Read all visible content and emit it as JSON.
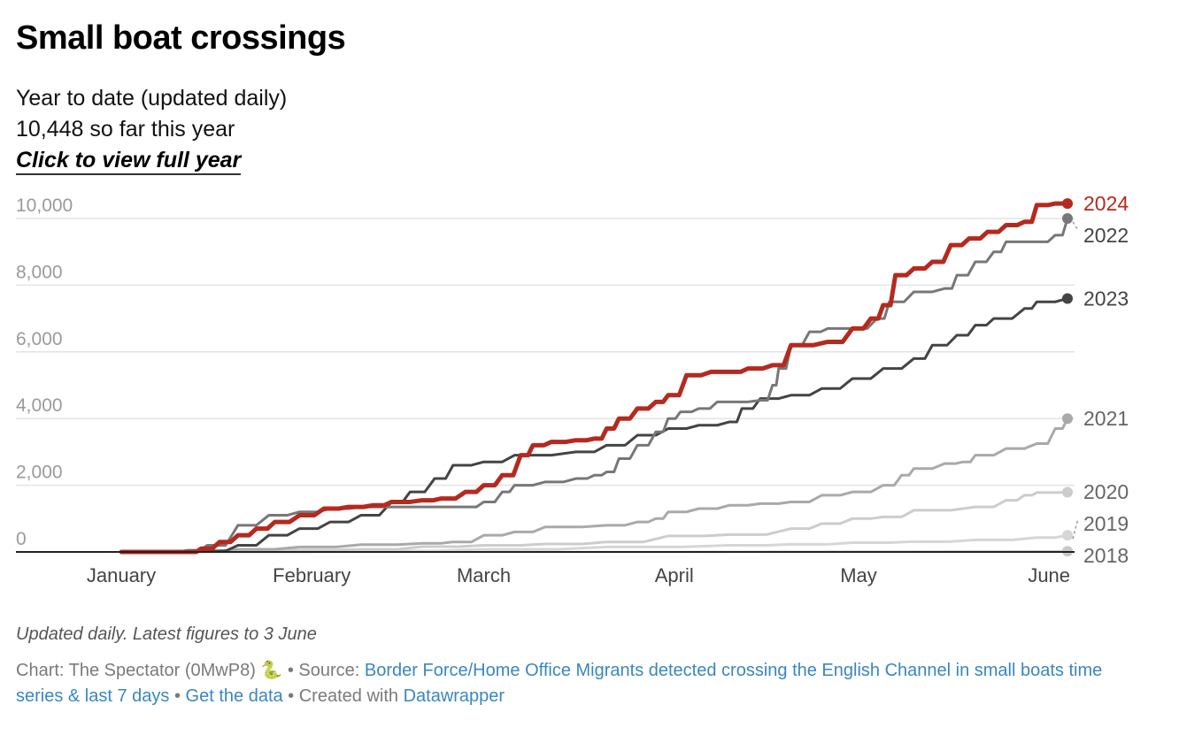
{
  "header": {
    "title": "Small boat crossings",
    "subtitle_line1": "Year to date (updated daily)",
    "subtitle_line2": "10,448 so far this year",
    "cta_label": "Click to view full year"
  },
  "notes": "Updated daily. Latest figures to 3 June",
  "footer": {
    "chart_prefix": "Chart: The Spectator (0MwP8) 🐍 • Source: ",
    "source_link": "Border Force/Home Office Migrants detected crossing the English Channel in small boats time series & last 7 days",
    "sep1": " • ",
    "data_link": "Get the data",
    "sep2": " • Created with ",
    "tool_link": "Datawrapper"
  },
  "colors": {
    "2024": "#b5291f",
    "2022": "#777777",
    "2023": "#444444",
    "2021": "#a9a9a9",
    "2020": "#cccccc",
    "2019": "#d6d6d6",
    "2018": "#c8c8c8",
    "grid": "#e4e4e4",
    "baseline": "#222222"
  },
  "chart_data": {
    "type": "line",
    "title": "Small boat crossings",
    "xlabel": "",
    "ylabel": "",
    "x_unit": "day of year",
    "xlim": [
      1,
      155
    ],
    "ylim": [
      0,
      10000
    ],
    "y_ticks": [
      0,
      2000,
      4000,
      6000,
      8000,
      10000
    ],
    "y_tick_labels": [
      "0",
      "2,000",
      "4,000",
      "6,000",
      "8,000",
      "10,000"
    ],
    "x_ticks": [
      1,
      32,
      60,
      91,
      121,
      152
    ],
    "x_tick_labels": [
      "January",
      "February",
      "March",
      "April",
      "May",
      "June"
    ],
    "grid": true,
    "series": [
      {
        "name": "2018",
        "color_key": "2018",
        "width": 2.5,
        "points": [
          [
            1,
            0
          ],
          [
            155,
            20
          ]
        ]
      },
      {
        "name": "2019",
        "color_key": "2019",
        "width": 3,
        "points": [
          [
            1,
            0
          ],
          [
            20,
            5
          ],
          [
            40,
            30
          ],
          [
            60,
            80
          ],
          [
            80,
            150
          ],
          [
            100,
            200
          ],
          [
            110,
            230
          ],
          [
            120,
            280
          ],
          [
            130,
            310
          ],
          [
            140,
            360
          ],
          [
            150,
            430
          ],
          [
            155,
            500
          ]
        ]
      },
      {
        "name": "2020",
        "color_key": "2020",
        "width": 3,
        "points": [
          [
            1,
            0
          ],
          [
            12,
            10
          ],
          [
            20,
            30
          ],
          [
            30,
            60
          ],
          [
            40,
            80
          ],
          [
            50,
            160
          ],
          [
            60,
            200
          ],
          [
            70,
            240
          ],
          [
            80,
            300
          ],
          [
            90,
            480
          ],
          [
            100,
            520
          ],
          [
            110,
            700
          ],
          [
            115,
            850
          ],
          [
            120,
            1000
          ],
          [
            125,
            1050
          ],
          [
            130,
            1250
          ],
          [
            140,
            1350
          ],
          [
            145,
            1550
          ],
          [
            148,
            1700
          ],
          [
            150,
            1780
          ],
          [
            155,
            1790
          ]
        ]
      },
      {
        "name": "2021",
        "color_key": "2021",
        "width": 3,
        "points": [
          [
            1,
            0
          ],
          [
            10,
            20
          ],
          [
            20,
            80
          ],
          [
            30,
            150
          ],
          [
            40,
            220
          ],
          [
            50,
            260
          ],
          [
            55,
            300
          ],
          [
            60,
            500
          ],
          [
            65,
            600
          ],
          [
            70,
            750
          ],
          [
            80,
            800
          ],
          [
            85,
            900
          ],
          [
            88,
            1000
          ],
          [
            90,
            1200
          ],
          [
            95,
            1300
          ],
          [
            100,
            1400
          ],
          [
            105,
            1450
          ],
          [
            110,
            1500
          ],
          [
            115,
            1700
          ],
          [
            120,
            1800
          ],
          [
            125,
            2000
          ],
          [
            128,
            2300
          ],
          [
            130,
            2500
          ],
          [
            135,
            2650
          ],
          [
            138,
            2700
          ],
          [
            140,
            2900
          ],
          [
            145,
            3100
          ],
          [
            150,
            3250
          ],
          [
            153,
            3700
          ],
          [
            155,
            4000
          ]
        ]
      },
      {
        "name": "2022",
        "color_key": "2022",
        "width": 3,
        "points": [
          [
            1,
            0
          ],
          [
            8,
            10
          ],
          [
            12,
            50
          ],
          [
            15,
            200
          ],
          [
            20,
            800
          ],
          [
            25,
            1100
          ],
          [
            30,
            1200
          ],
          [
            35,
            1300
          ],
          [
            40,
            1350
          ],
          [
            50,
            1350
          ],
          [
            57,
            1350
          ],
          [
            60,
            1500
          ],
          [
            63,
            1800
          ],
          [
            65,
            2000
          ],
          [
            70,
            2100
          ],
          [
            75,
            2200
          ],
          [
            78,
            2300
          ],
          [
            80,
            2400
          ],
          [
            82,
            2800
          ],
          [
            85,
            3200
          ],
          [
            88,
            3600
          ],
          [
            90,
            4000
          ],
          [
            92,
            4200
          ],
          [
            95,
            4300
          ],
          [
            98,
            4500
          ],
          [
            100,
            4500
          ],
          [
            105,
            4550
          ],
          [
            107,
            5000
          ],
          [
            108,
            5500
          ],
          [
            110,
            6200
          ],
          [
            113,
            6600
          ],
          [
            116,
            6700
          ],
          [
            120,
            6700
          ],
          [
            124,
            7000
          ],
          [
            126,
            7500
          ],
          [
            130,
            7800
          ],
          [
            135,
            7900
          ],
          [
            137,
            8300
          ],
          [
            140,
            8700
          ],
          [
            143,
            9000
          ],
          [
            145,
            9300
          ],
          [
            150,
            9300
          ],
          [
            153,
            9500
          ],
          [
            155,
            10000
          ]
        ]
      },
      {
        "name": "2023",
        "color_key": "2023",
        "width": 3,
        "points": [
          [
            1,
            0
          ],
          [
            10,
            0
          ],
          [
            15,
            30
          ],
          [
            20,
            200
          ],
          [
            25,
            500
          ],
          [
            30,
            700
          ],
          [
            35,
            900
          ],
          [
            40,
            1100
          ],
          [
            45,
            1500
          ],
          [
            48,
            1800
          ],
          [
            52,
            2200
          ],
          [
            55,
            2600
          ],
          [
            60,
            2700
          ],
          [
            65,
            2900
          ],
          [
            75,
            3000
          ],
          [
            80,
            3200
          ],
          [
            85,
            3500
          ],
          [
            90,
            3700
          ],
          [
            95,
            3800
          ],
          [
            100,
            3900
          ],
          [
            102,
            4300
          ],
          [
            105,
            4600
          ],
          [
            110,
            4700
          ],
          [
            115,
            4900
          ],
          [
            120,
            5200
          ],
          [
            125,
            5500
          ],
          [
            130,
            5800
          ],
          [
            133,
            6200
          ],
          [
            137,
            6500
          ],
          [
            140,
            6800
          ],
          [
            143,
            7000
          ],
          [
            148,
            7300
          ],
          [
            150,
            7500
          ],
          [
            155,
            7600
          ]
        ]
      },
      {
        "name": "2024",
        "color_key": "2024",
        "width": 5,
        "points": [
          [
            1,
            0
          ],
          [
            12,
            0
          ],
          [
            14,
            100
          ],
          [
            17,
            300
          ],
          [
            20,
            500
          ],
          [
            23,
            700
          ],
          [
            26,
            900
          ],
          [
            30,
            1100
          ],
          [
            34,
            1300
          ],
          [
            38,
            1350
          ],
          [
            42,
            1400
          ],
          [
            45,
            1500
          ],
          [
            50,
            1550
          ],
          [
            53,
            1600
          ],
          [
            57,
            1800
          ],
          [
            60,
            2000
          ],
          [
            63,
            2300
          ],
          [
            66,
            2900
          ],
          [
            68,
            3200
          ],
          [
            71,
            3300
          ],
          [
            75,
            3350
          ],
          [
            78,
            3400
          ],
          [
            80,
            3700
          ],
          [
            82,
            4000
          ],
          [
            85,
            4300
          ],
          [
            88,
            4500
          ],
          [
            90,
            4700
          ],
          [
            93,
            5300
          ],
          [
            97,
            5400
          ],
          [
            100,
            5400
          ],
          [
            103,
            5500
          ],
          [
            107,
            5600
          ],
          [
            110,
            6200
          ],
          [
            116,
            6300
          ],
          [
            120,
            6700
          ],
          [
            123,
            7000
          ],
          [
            125,
            7400
          ],
          [
            127,
            8300
          ],
          [
            130,
            8500
          ],
          [
            133,
            8700
          ],
          [
            136,
            9200
          ],
          [
            139,
            9400
          ],
          [
            142,
            9600
          ],
          [
            145,
            9800
          ],
          [
            148,
            9900
          ],
          [
            150,
            10400
          ],
          [
            153,
            10448
          ],
          [
            155,
            10448
          ]
        ]
      }
    ],
    "end_labels": [
      {
        "name": "2024",
        "value": 10448
      },
      {
        "name": "2022",
        "value": 10000
      },
      {
        "name": "2023",
        "value": 7600
      },
      {
        "name": "2021",
        "value": 4000
      },
      {
        "name": "2020",
        "value": 1790
      },
      {
        "name": "2019",
        "value": 500
      },
      {
        "name": "2018",
        "value": 20
      }
    ]
  }
}
